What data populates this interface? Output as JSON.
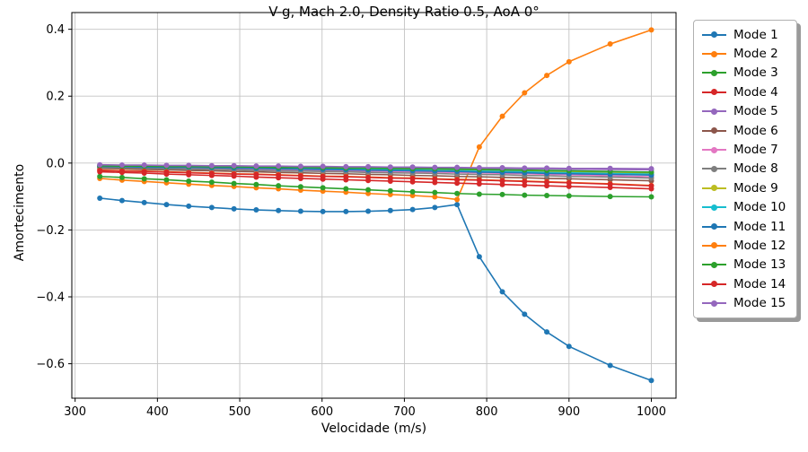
{
  "title": "V-g, Mach 2.0, Density Ratio 0.5, AoA 0°",
  "chart_data": {
    "type": "line",
    "title": "V-g, Mach 2.0, Density Ratio 0.5, AoA 0°",
    "xlabel": "Velocidade (m/s)",
    "ylabel": "Amortecimento",
    "xlim": [
      296,
      1030
    ],
    "ylim": [
      -0.703,
      0.45
    ],
    "xticks": [
      300,
      400,
      500,
      600,
      700,
      800,
      900,
      1000
    ],
    "yticks": [
      0.4,
      0.2,
      0.0,
      -0.2,
      -0.4,
      -0.6
    ],
    "grid": true,
    "legend_position": "right-outside-top",
    "marker": "circle",
    "x": [
      330,
      357,
      384,
      411,
      438,
      466,
      493,
      520,
      547,
      574,
      601,
      629,
      656,
      683,
      710,
      737,
      764,
      791,
      819,
      846,
      873,
      900,
      950,
      1000
    ],
    "series": [
      {
        "name": "Mode 1",
        "color": "#1f77b4",
        "values": [
          -0.105,
          -0.112,
          -0.118,
          -0.124,
          -0.129,
          -0.133,
          -0.137,
          -0.14,
          -0.142,
          -0.144,
          -0.145,
          -0.145,
          -0.144,
          -0.142,
          -0.139,
          -0.133,
          -0.124,
          -0.28,
          -0.385,
          -0.452,
          -0.505,
          -0.548,
          -0.605,
          -0.65
        ]
      },
      {
        "name": "Mode 2",
        "color": "#ff7f0e",
        "values": [
          -0.046,
          -0.051,
          -0.055,
          -0.059,
          -0.063,
          -0.067,
          -0.07,
          -0.074,
          -0.077,
          -0.081,
          -0.084,
          -0.087,
          -0.091,
          -0.094,
          -0.097,
          -0.101,
          -0.109,
          0.048,
          0.14,
          0.21,
          0.262,
          0.303,
          0.356,
          0.398
        ]
      },
      {
        "name": "Mode 3",
        "color": "#2ca02c",
        "values": [
          -0.04,
          -0.043,
          -0.047,
          -0.05,
          -0.054,
          -0.057,
          -0.061,
          -0.064,
          -0.068,
          -0.071,
          -0.074,
          -0.077,
          -0.08,
          -0.083,
          -0.086,
          -0.088,
          -0.091,
          -0.093,
          -0.094,
          -0.096,
          -0.097,
          -0.098,
          -0.1,
          -0.101
        ]
      },
      {
        "name": "Mode 4",
        "color": "#d62728",
        "values": [
          -0.026,
          -0.028,
          -0.03,
          -0.033,
          -0.035,
          -0.037,
          -0.039,
          -0.042,
          -0.044,
          -0.046,
          -0.048,
          -0.05,
          -0.052,
          -0.054,
          -0.056,
          -0.058,
          -0.06,
          -0.062,
          -0.064,
          -0.066,
          -0.068,
          -0.07,
          -0.073,
          -0.077
        ]
      },
      {
        "name": "Mode 5",
        "color": "#9467bd",
        "values": [
          -0.007,
          -0.008,
          -0.008,
          -0.009,
          -0.009,
          -0.01,
          -0.01,
          -0.011,
          -0.011,
          -0.012,
          -0.012,
          -0.013,
          -0.013,
          -0.014,
          -0.014,
          -0.015,
          -0.015,
          -0.016,
          -0.016,
          -0.017,
          -0.017,
          -0.018,
          -0.019,
          -0.02
        ]
      },
      {
        "name": "Mode 6",
        "color": "#8c564b",
        "values": [
          -0.016,
          -0.017,
          -0.019,
          -0.02,
          -0.022,
          -0.023,
          -0.025,
          -0.026,
          -0.028,
          -0.029,
          -0.031,
          -0.032,
          -0.034,
          -0.035,
          -0.037,
          -0.038,
          -0.04,
          -0.041,
          -0.043,
          -0.044,
          -0.046,
          -0.047,
          -0.05,
          -0.053
        ]
      },
      {
        "name": "Mode 7",
        "color": "#e377c2",
        "values": [
          -0.012,
          -0.013,
          -0.014,
          -0.015,
          -0.016,
          -0.017,
          -0.018,
          -0.019,
          -0.02,
          -0.021,
          -0.022,
          -0.023,
          -0.024,
          -0.025,
          -0.026,
          -0.027,
          -0.028,
          -0.029,
          -0.031,
          -0.032,
          -0.034,
          -0.035,
          -0.038,
          -0.041
        ]
      },
      {
        "name": "Mode 8",
        "color": "#7f7f7f",
        "values": [
          -0.013,
          -0.014,
          -0.015,
          -0.017,
          -0.018,
          -0.019,
          -0.02,
          -0.022,
          -0.023,
          -0.024,
          -0.025,
          -0.026,
          -0.028,
          -0.029,
          -0.03,
          -0.031,
          -0.033,
          -0.034,
          -0.035,
          -0.037,
          -0.038,
          -0.04,
          -0.042,
          -0.045
        ]
      },
      {
        "name": "Mode 9",
        "color": "#bcbd22",
        "values": [
          -0.01,
          -0.011,
          -0.011,
          -0.012,
          -0.012,
          -0.013,
          -0.014,
          -0.014,
          -0.015,
          -0.016,
          -0.016,
          -0.017,
          -0.018,
          -0.018,
          -0.019,
          -0.02,
          -0.021,
          -0.022,
          -0.023,
          -0.024,
          -0.025,
          -0.026,
          -0.028,
          -0.03
        ]
      },
      {
        "name": "Mode 10",
        "color": "#17becf",
        "values": [
          -0.009,
          -0.01,
          -0.01,
          -0.011,
          -0.012,
          -0.012,
          -0.013,
          -0.014,
          -0.015,
          -0.016,
          -0.017,
          -0.018,
          -0.019,
          -0.02,
          -0.021,
          -0.022,
          -0.023,
          -0.024,
          -0.025,
          -0.026,
          -0.028,
          -0.029,
          -0.031,
          -0.033
        ]
      },
      {
        "name": "Mode 11",
        "color": "#1f77b4",
        "values": [
          -0.01,
          -0.011,
          -0.012,
          -0.013,
          -0.013,
          -0.014,
          -0.015,
          -0.016,
          -0.017,
          -0.018,
          -0.019,
          -0.02,
          -0.021,
          -0.022,
          -0.023,
          -0.024,
          -0.025,
          -0.027,
          -0.028,
          -0.029,
          -0.031,
          -0.032,
          -0.034,
          -0.036
        ]
      },
      {
        "name": "Mode 12",
        "color": "#ff7f0e",
        "values": [
          -0.021,
          -0.023,
          -0.024,
          -0.026,
          -0.028,
          -0.03,
          -0.032,
          -0.033,
          -0.035,
          -0.037,
          -0.039,
          -0.04,
          -0.042,
          -0.044,
          -0.045,
          -0.047,
          -0.049,
          -0.05,
          -0.052,
          -0.054,
          -0.056,
          -0.058,
          -0.062,
          -0.067
        ]
      },
      {
        "name": "Mode 13",
        "color": "#2ca02c",
        "values": [
          -0.008,
          -0.009,
          -0.009,
          -0.01,
          -0.01,
          -0.011,
          -0.011,
          -0.012,
          -0.013,
          -0.013,
          -0.014,
          -0.015,
          -0.015,
          -0.016,
          -0.017,
          -0.017,
          -0.018,
          -0.019,
          -0.02,
          -0.021,
          -0.022,
          -0.023,
          -0.025,
          -0.027
        ]
      },
      {
        "name": "Mode 14",
        "color": "#d62728",
        "values": [
          -0.022,
          -0.024,
          -0.025,
          -0.027,
          -0.029,
          -0.031,
          -0.033,
          -0.034,
          -0.036,
          -0.038,
          -0.04,
          -0.041,
          -0.043,
          -0.045,
          -0.046,
          -0.048,
          -0.05,
          -0.051,
          -0.053,
          -0.055,
          -0.057,
          -0.059,
          -0.063,
          -0.068
        ]
      },
      {
        "name": "Mode 15",
        "color": "#9467bd",
        "values": [
          -0.005,
          -0.006,
          -0.006,
          -0.007,
          -0.007,
          -0.008,
          -0.008,
          -0.009,
          -0.009,
          -0.01,
          -0.01,
          -0.011,
          -0.011,
          -0.012,
          -0.012,
          -0.013,
          -0.013,
          -0.014,
          -0.014,
          -0.015,
          -0.015,
          -0.016,
          -0.016,
          -0.017
        ]
      }
    ],
    "styles": {
      "grid_color": "#c3c3c3",
      "frame_color": "#000000",
      "background": "#ffffff",
      "line_width": 1.6,
      "marker_radius": 3
    }
  }
}
